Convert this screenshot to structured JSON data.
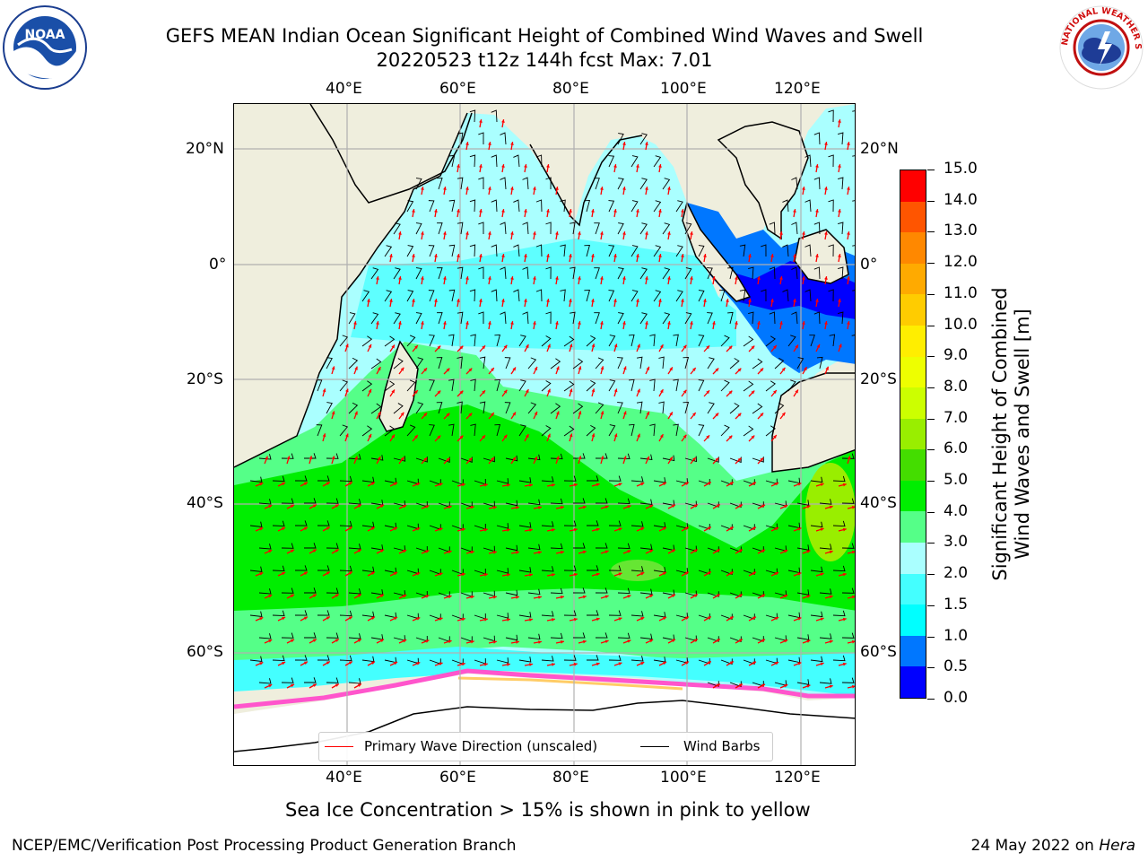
{
  "title": {
    "line1": "GEFS MEAN Indian Ocean Significant Height of Combined Wind Waves and Swell",
    "line2": "20220523 t12z 144h fcst   Max: 7.01"
  },
  "logos": {
    "noaa_text": "NOAA",
    "nws_text": "NATIONAL WEATHER SERVICE"
  },
  "map": {
    "lon_ticks_top": [
      "40°E",
      "60°E",
      "80°E",
      "100°E",
      "120°E"
    ],
    "lon_ticks_bottom": [
      "40°E",
      "60°E",
      "80°E",
      "100°E",
      "120°E"
    ],
    "lat_ticks_left": [
      "20°N",
      "0°",
      "20°S",
      "40°S",
      "60°S"
    ],
    "lat_ticks_right": [
      "20°N",
      "0°",
      "20°S",
      "40°S",
      "60°S"
    ],
    "land_color": "#efeedd",
    "ice_colors": [
      "#ff55cc",
      "#ffcc66"
    ],
    "wave_arrow_color": "#ff0000",
    "wind_barb_color": "#000000"
  },
  "legend": {
    "primary_wave_label": "Primary Wave Direction (unscaled)",
    "wind_barbs_label": "Wind Barbs"
  },
  "colorbar": {
    "title_line1": "Significant Height of Combined",
    "title_line2": "Wind Waves and Swell [m]",
    "tick_labels": [
      "0.0",
      "0.5",
      "1.0",
      "1.5",
      "2.0",
      "3.0",
      "4.0",
      "5.0",
      "6.0",
      "7.0",
      "8.0",
      "9.0",
      "10.0",
      "11.0",
      "12.0",
      "13.0",
      "14.0",
      "15.0"
    ],
    "colors": [
      "#0000ff",
      "#0077ff",
      "#00ffff",
      "#44ffff",
      "#aaffff",
      "#55ff88",
      "#00ee00",
      "#44dd00",
      "#99ee00",
      "#ccff00",
      "#eeff00",
      "#ffee00",
      "#ffcc00",
      "#ffaa00",
      "#ff8800",
      "#ff5500",
      "#ff0000"
    ]
  },
  "notes": {
    "sea_ice": "Sea Ice Concentration > 15% is shown in pink to yellow",
    "org": "NCEP/EMC/Verification Post Processing Product Generation Branch",
    "date": "24 May 2022 on ",
    "host": "Hera"
  }
}
